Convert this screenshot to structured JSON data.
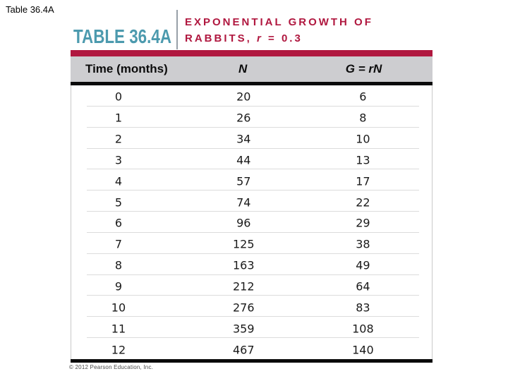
{
  "page": {
    "slide_label": "Table 36.4A",
    "copyright": "© 2012 Pearson Education, Inc."
  },
  "header": {
    "table_label": "TABLE 36.4A",
    "title_line1": "EXPONENTIAL GROWTH OF",
    "title_line2_prefix": "RABBITS, ",
    "title_line2_var": "r",
    "title_line2_suffix": " = 0.3"
  },
  "colors": {
    "teal": "#4c9aae",
    "crimson": "#b0173f",
    "header_gray": "#cdcdd0"
  },
  "chart_data": {
    "type": "table",
    "title": "EXPONENTIAL GROWTH OF RABBITS, r = 0.3",
    "growth_rate_r": 0.3,
    "columns": [
      "Time (months)",
      "N",
      "G = rN"
    ],
    "rows": [
      [
        0,
        20,
        6
      ],
      [
        1,
        26,
        8
      ],
      [
        2,
        34,
        10
      ],
      [
        3,
        44,
        13
      ],
      [
        4,
        57,
        17
      ],
      [
        5,
        74,
        22
      ],
      [
        6,
        96,
        29
      ],
      [
        7,
        125,
        38
      ],
      [
        8,
        163,
        49
      ],
      [
        9,
        212,
        64
      ],
      [
        10,
        276,
        83
      ],
      [
        11,
        359,
        108
      ],
      [
        12,
        467,
        140
      ]
    ]
  }
}
